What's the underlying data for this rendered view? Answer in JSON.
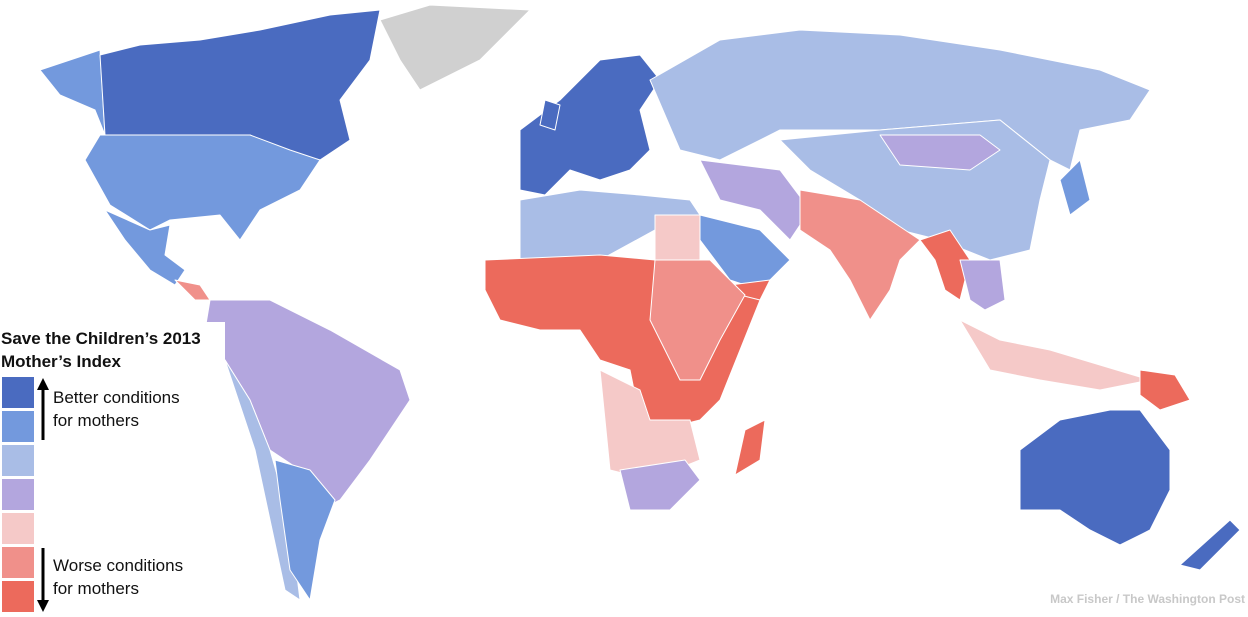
{
  "title_lines": [
    "Save the Children’s 2013",
    "Mother’s Index"
  ],
  "legend": {
    "colors": [
      "#4a6bc0",
      "#7399dd",
      "#a9bde6",
      "#b3a6de",
      "#f5c9c8",
      "#f0908a",
      "#ec6a5c"
    ],
    "better_lines": [
      "Better conditions",
      "for mothers"
    ],
    "worse_lines": [
      "Worse conditions",
      "for mothers"
    ]
  },
  "credit": "Max Fisher / The Washington Post"
}
